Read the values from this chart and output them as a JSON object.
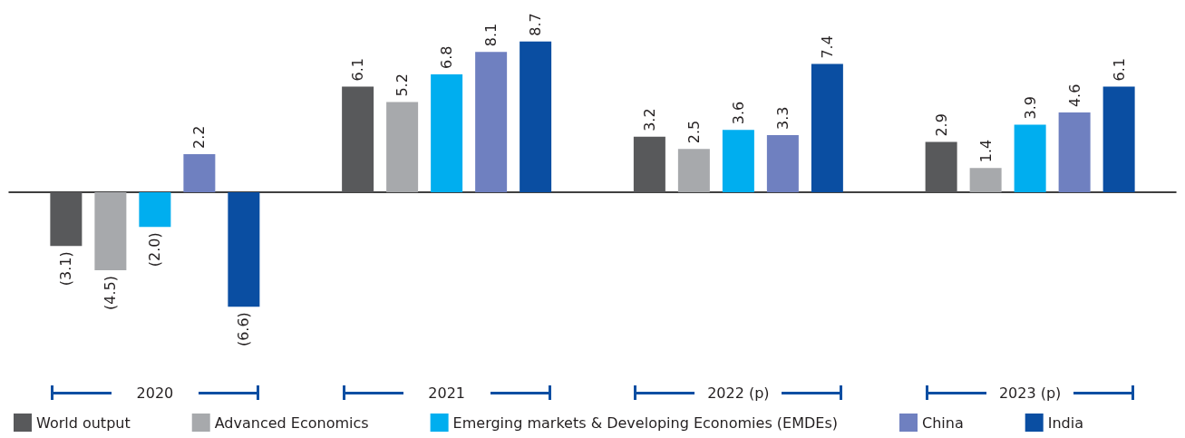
{
  "chart_data": {
    "type": "bar",
    "categories": [
      "2020",
      "2021",
      "2022 (p)",
      "2023 (p)"
    ],
    "series": [
      {
        "name": "World output",
        "color": "#58595b",
        "values": [
          -3.1,
          6.1,
          3.2,
          2.9
        ],
        "value_labels": [
          "(3.1)",
          "6.1",
          "3.2",
          "2.9"
        ]
      },
      {
        "name": "Advanced Economics",
        "color": "#a7a9ac",
        "values": [
          -4.5,
          5.2,
          2.5,
          1.4
        ],
        "value_labels": [
          "(4.5)",
          "5.2",
          "2.5",
          "1.4"
        ]
      },
      {
        "name": "Emerging markets & Developing Economies (EMDEs)",
        "color": "#00aeef",
        "values": [
          -2.0,
          6.8,
          3.6,
          3.9
        ],
        "value_labels": [
          "(2.0)",
          "6.8",
          "3.6",
          "3.9"
        ]
      },
      {
        "name": "China",
        "color": "#6f80c0",
        "values": [
          2.2,
          8.1,
          3.3,
          4.6
        ],
        "value_labels": [
          "2.2",
          "8.1",
          "3.3",
          "4.6"
        ]
      },
      {
        "name": "India",
        "color": "#0a4ea2",
        "values": [
          -6.6,
          8.7,
          7.4,
          6.1
        ],
        "value_labels": [
          "(6.6)",
          "8.7",
          "7.4",
          "6.1"
        ]
      }
    ],
    "legend": "bottom"
  }
}
